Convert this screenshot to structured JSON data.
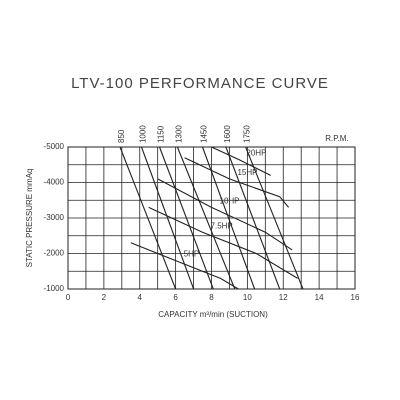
{
  "chart_data": {
    "type": "line",
    "title": "LTV-100 PERFORMANCE CURVE",
    "x_label": "CAPACITY m³/min (SUCTION)",
    "y_label": "STATIC PRESSURE mmAq",
    "rpm_label": "R.P.M.",
    "xlim": [
      0,
      16
    ],
    "xticks": [
      0,
      2,
      4,
      6,
      8,
      10,
      12,
      14,
      16
    ],
    "minor_xticks": [
      1,
      3,
      5,
      7,
      9,
      11,
      13,
      15
    ],
    "ylim": [
      -1000,
      -5000
    ],
    "yticks": [
      -5000,
      -4000,
      -3000,
      -2000,
      -1000
    ],
    "minor_yticks": [
      -4500,
      -3500,
      -2500,
      -1500
    ],
    "grid": true,
    "series": [
      {
        "name": "850",
        "color": "#222",
        "x": [
          2.9,
          6.0
        ],
        "values": [
          -5000,
          -1000
        ]
      },
      {
        "name": "1000",
        "color": "#222",
        "x": [
          4.1,
          7.0
        ],
        "values": [
          -5000,
          -1000
        ]
      },
      {
        "name": "1150",
        "color": "#222",
        "x": [
          5.1,
          8.1
        ],
        "values": [
          -5000,
          -1000
        ]
      },
      {
        "name": "1300",
        "color": "#222",
        "x": [
          6.1,
          9.3
        ],
        "values": [
          -5000,
          -1000
        ]
      },
      {
        "name": "1450",
        "color": "#222",
        "x": [
          7.5,
          10.4
        ],
        "values": [
          -5000,
          -1000
        ]
      },
      {
        "name": "1600",
        "color": "#222",
        "x": [
          8.8,
          11.8
        ],
        "values": [
          -5000,
          -1000
        ]
      },
      {
        "name": "1750",
        "color": "#222",
        "x": [
          9.9,
          13.1
        ],
        "values": [
          -5000,
          -1000
        ]
      }
    ],
    "power_curves": [
      {
        "name": "20HP",
        "color": "#222",
        "x": [
          8.0,
          9.5,
          11.3
        ],
        "values": [
          -5000,
          -4650,
          -4200
        ]
      },
      {
        "name": "15HP",
        "color": "#222",
        "x": [
          6.5,
          9.0,
          11.8,
          12.3
        ],
        "values": [
          -4700,
          -4100,
          -3600,
          -3300
        ]
      },
      {
        "name": "10HP",
        "color": "#222",
        "x": [
          5.0,
          8.0,
          11.0,
          12.5
        ],
        "values": [
          -4100,
          -3300,
          -2600,
          -2100
        ]
      },
      {
        "name": "7.5HP",
        "color": "#222",
        "x": [
          4.5,
          7.5,
          10.5,
          12.8
        ],
        "values": [
          -3300,
          -2600,
          -2000,
          -1300
        ]
      },
      {
        "name": "5HP",
        "color": "#222",
        "x": [
          3.5,
          6.0,
          8.5,
          9.5
        ],
        "values": [
          -2300,
          -1800,
          -1300,
          -1000
        ]
      }
    ]
  }
}
